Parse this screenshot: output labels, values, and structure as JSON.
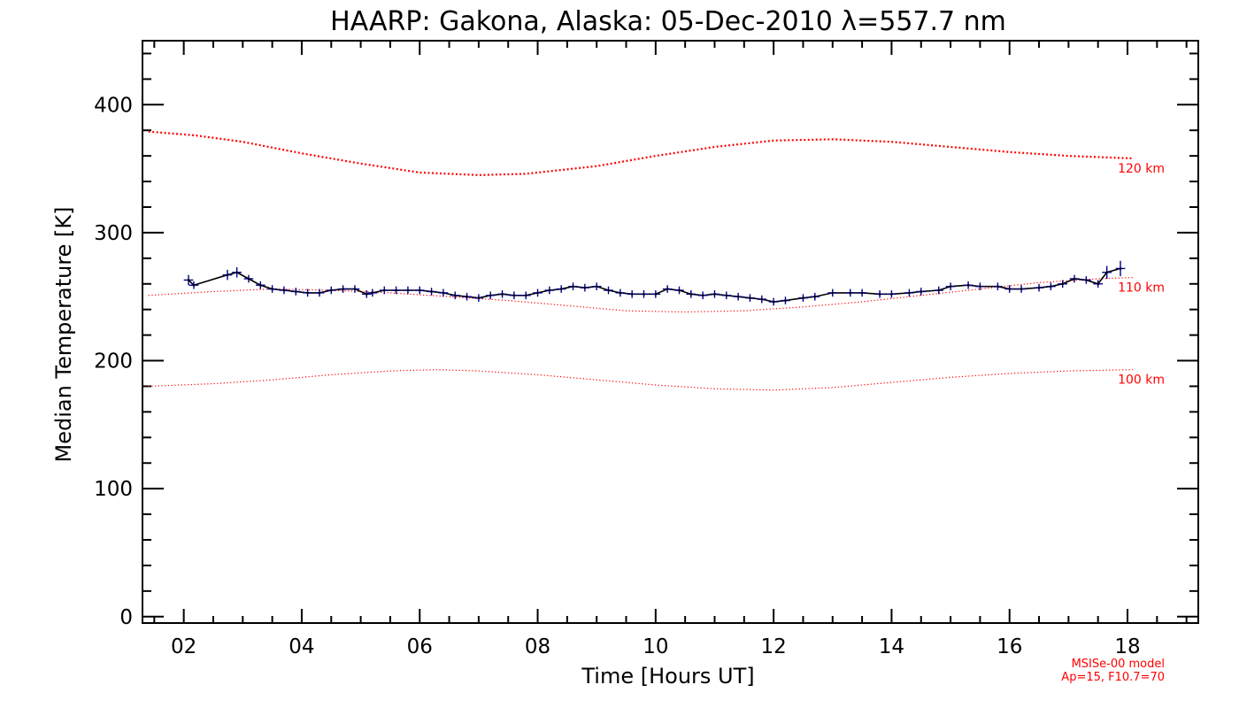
{
  "chart_data": {
    "type": "line",
    "title": "HAARP: Gakona,  Alaska: 05-Dec-2010 λ=557.7 nm",
    "xlabel": "Time [Hours UT]",
    "ylabel": "Median Temperature [K]",
    "xlim": [
      1.3,
      19.2
    ],
    "ylim": [
      -5,
      450
    ],
    "x_tick_labels": [
      "02",
      "04",
      "06",
      "08",
      "10",
      "12",
      "14",
      "16",
      "18"
    ],
    "y_tick_labels": [
      "0",
      "100",
      "200",
      "300",
      "400"
    ],
    "note_lines": [
      "MSISe-00 model",
      "Ap=15, F10.7=70"
    ],
    "colors": {
      "measured": "#000000",
      "measured_error": "#00008b",
      "model": "#ff0000"
    },
    "series": [
      {
        "name": "120 km",
        "style": "dotted",
        "x": [
          1.4,
          2.2,
          3.0,
          4.0,
          5.0,
          6.0,
          7.0,
          7.8,
          9.0,
          10.0,
          11.0,
          12.0,
          13.0,
          14.0,
          15.0,
          16.0,
          17.0,
          18.1
        ],
        "y": [
          379,
          376,
          371,
          362,
          354,
          347,
          345,
          346,
          352,
          360,
          367,
          372,
          373,
          371,
          367,
          363,
          360,
          358
        ]
      },
      {
        "name": "110 km",
        "style": "dotted",
        "x": [
          1.4,
          2.5,
          3.5,
          4.5,
          5.5,
          6.5,
          7.5,
          8.5,
          9.5,
          10.5,
          11.5,
          12.5,
          13.5,
          14.5,
          15.5,
          16.5,
          17.5,
          18.1
        ],
        "y": [
          251,
          254,
          256,
          255,
          253,
          250,
          247,
          243,
          239,
          238,
          239,
          242,
          246,
          251,
          256,
          261,
          264,
          265
        ]
      },
      {
        "name": "100 km",
        "style": "dotted",
        "x": [
          1.4,
          2.5,
          3.5,
          4.5,
          5.5,
          6.3,
          7.0,
          8.0,
          9.0,
          10.0,
          11.0,
          12.0,
          13.0,
          14.0,
          15.0,
          16.0,
          17.0,
          18.1
        ],
        "y": [
          180,
          182,
          185,
          189,
          192,
          193,
          192,
          189,
          185,
          181,
          178,
          177,
          179,
          183,
          187,
          190,
          192,
          193
        ]
      },
      {
        "name": "",
        "style": "measured",
        "x": [
          2.08,
          2.17,
          2.74,
          2.9,
          3.1,
          3.3,
          3.5,
          3.7,
          3.9,
          4.1,
          4.3,
          4.5,
          4.7,
          4.9,
          5.1,
          5.2,
          5.4,
          5.6,
          5.8,
          6.0,
          6.2,
          6.4,
          6.6,
          6.8,
          7.0,
          7.2,
          7.4,
          7.6,
          7.8,
          8.0,
          8.2,
          8.4,
          8.6,
          8.8,
          9.0,
          9.2,
          9.4,
          9.6,
          9.8,
          10.0,
          10.2,
          10.4,
          10.6,
          10.8,
          11.0,
          11.2,
          11.4,
          11.6,
          11.8,
          12.0,
          12.2,
          12.5,
          12.7,
          13.0,
          13.3,
          13.5,
          13.8,
          14.0,
          14.3,
          14.5,
          14.8,
          15.0,
          15.3,
          15.5,
          15.8,
          16.0,
          16.2,
          16.5,
          16.7,
          16.9,
          17.1,
          17.3,
          17.5,
          17.65,
          17.88
        ],
        "y": [
          263,
          259,
          267,
          269,
          264,
          259,
          256,
          255,
          254,
          253,
          253,
          255,
          256,
          256,
          252,
          253,
          255,
          255,
          255,
          255,
          254,
          253,
          251,
          250,
          249,
          251,
          252,
          251,
          251,
          253,
          255,
          256,
          258,
          257,
          258,
          255,
          253,
          252,
          252,
          252,
          256,
          255,
          252,
          251,
          252,
          251,
          250,
          249,
          248,
          246,
          247,
          249,
          250,
          253,
          253,
          253,
          252,
          252,
          253,
          254,
          255,
          258,
          259,
          258,
          258,
          256,
          256,
          257,
          258,
          260,
          264,
          263,
          260,
          269,
          272
        ],
        "yerr": [
          4,
          3,
          4,
          4,
          3,
          3,
          3,
          3,
          3,
          3,
          3,
          3,
          3,
          3,
          3,
          3,
          3,
          3,
          3,
          3,
          3,
          3,
          3,
          3,
          3,
          3,
          3,
          3,
          3,
          3,
          3,
          3,
          3,
          3,
          3,
          3,
          3,
          3,
          3,
          3,
          3,
          3,
          3,
          3,
          3,
          3,
          3,
          3,
          3,
          3,
          3,
          3,
          3,
          3,
          3,
          3,
          3,
          3,
          3,
          3,
          3,
          3,
          3,
          3,
          3,
          3,
          3,
          3,
          3,
          3,
          3,
          3,
          3,
          5,
          6
        ],
        "xerr": 0.08
      }
    ]
  }
}
